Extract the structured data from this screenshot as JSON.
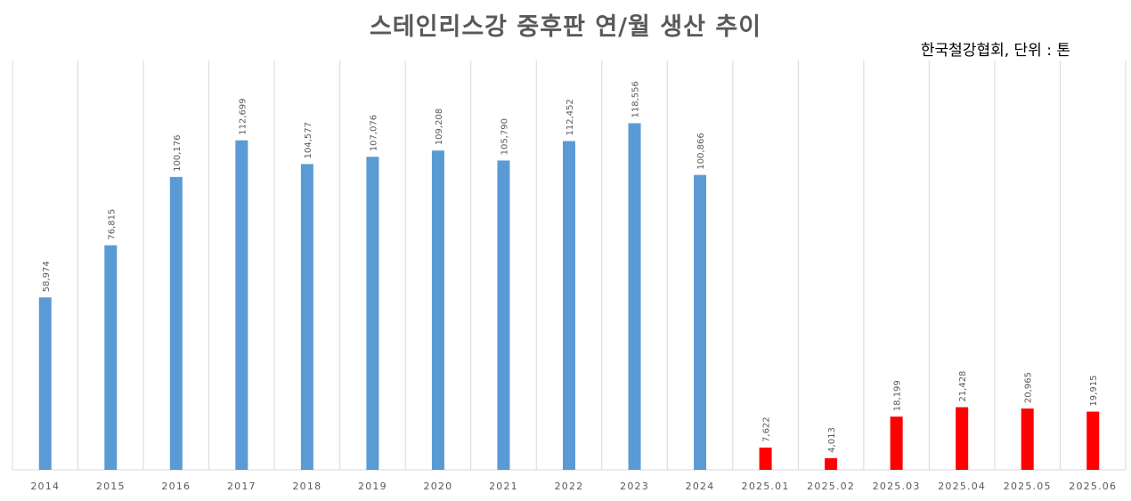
{
  "title": "스테인리스강 중후판 연/월 생산 추이",
  "source_note": "한국철강협회, 단위 : 톤",
  "colors": {
    "annual": "#5b9bd5",
    "monthly": "#ff0000",
    "grid": "#d9d9d9",
    "text": "#595959"
  },
  "chart_data": {
    "type": "bar",
    "title": "스테인리스강 중후판 연/월 생산 추이",
    "xlabel": "",
    "ylabel": "",
    "ylim": [
      0,
      140000
    ],
    "grid": "vertical",
    "categories": [
      "2014",
      "2015",
      "2016",
      "2017",
      "2018",
      "2019",
      "2020",
      "2021",
      "2022",
      "2023",
      "2024",
      "2025.01",
      "2025.02",
      "2025.03",
      "2025.04",
      "2025.05",
      "2025.06"
    ],
    "values": [
      58974,
      76815,
      100176,
      112699,
      104577,
      107076,
      109208,
      105790,
      112452,
      118556,
      100866,
      7622,
      4013,
      18199,
      21428,
      20965,
      19915
    ],
    "value_labels": [
      "58,974",
      "76,815",
      "100,176",
      "112,699",
      "104,577",
      "107,076",
      "109,208",
      "105,790",
      "112,452",
      "118,556",
      "100,866",
      "7,622",
      "4,013",
      "18,199",
      "21,428",
      "20,965",
      "19,915"
    ],
    "bar_colors": [
      "#5b9bd5",
      "#5b9bd5",
      "#5b9bd5",
      "#5b9bd5",
      "#5b9bd5",
      "#5b9bd5",
      "#5b9bd5",
      "#5b9bd5",
      "#5b9bd5",
      "#5b9bd5",
      "#5b9bd5",
      "#ff0000",
      "#ff0000",
      "#ff0000",
      "#ff0000",
      "#ff0000",
      "#ff0000"
    ]
  }
}
